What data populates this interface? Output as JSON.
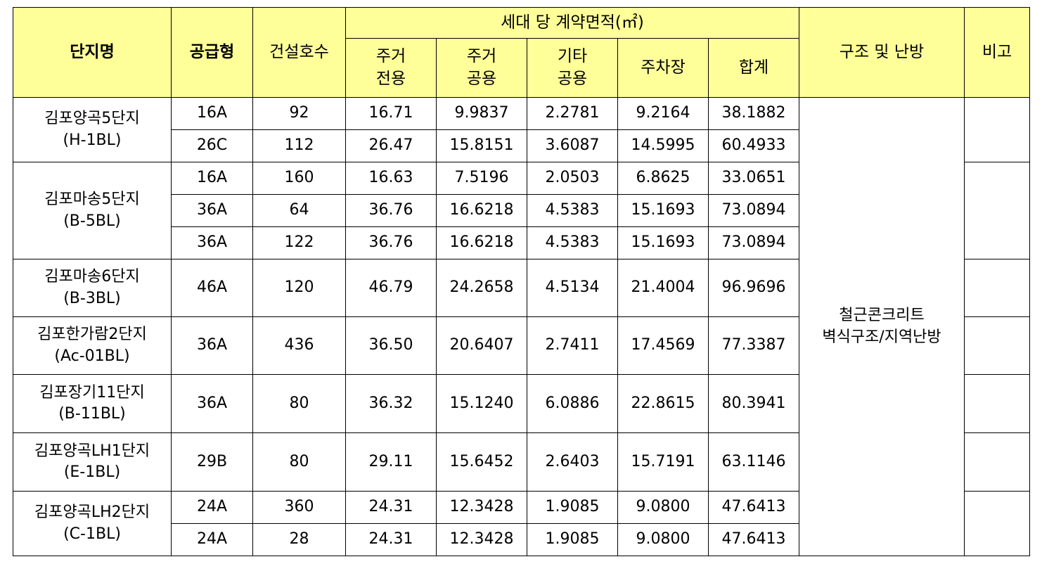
{
  "headers": {
    "complex_name": "단지명",
    "supply_type": "공급형",
    "construction_units": "건설호수",
    "area_group": "세대 당 계약면적(㎡)",
    "residential_exclusive": "주거\n전용",
    "residential_common": "주거\n공용",
    "other_common": "기타\n공용",
    "parking": "주차장",
    "total": "합계",
    "structure_heating": "구조 및 난방",
    "remarks": "비고"
  },
  "structure_heating_value": "철근콘크리트\n벽식구조/지역난방",
  "complexes": [
    {
      "name": "김포양곡5단지\n(H-1BL)",
      "rows": [
        {
          "type": "16A",
          "units": "92",
          "res_excl": "16.71",
          "res_common": "9.9837",
          "other_common": "2.2781",
          "parking": "9.2164",
          "total": "38.1882"
        },
        {
          "type": "26C",
          "units": "112",
          "res_excl": "26.47",
          "res_common": "15.8151",
          "other_common": "3.6087",
          "parking": "14.5995",
          "total": "60.4933"
        }
      ]
    },
    {
      "name": "김포마송5단지\n(B-5BL)",
      "rows": [
        {
          "type": "16A",
          "units": "160",
          "res_excl": "16.63",
          "res_common": "7.5196",
          "other_common": "2.0503",
          "parking": "6.8625",
          "total": "33.0651"
        },
        {
          "type": "36A",
          "units": "64",
          "res_excl": "36.76",
          "res_common": "16.6218",
          "other_common": "4.5383",
          "parking": "15.1693",
          "total": "73.0894"
        },
        {
          "type": "36A",
          "units": "122",
          "res_excl": "36.76",
          "res_common": "16.6218",
          "other_common": "4.5383",
          "parking": "15.1693",
          "total": "73.0894"
        }
      ]
    },
    {
      "name": "김포마송6단지\n(B-3BL)",
      "rows": [
        {
          "type": "46A",
          "units": "120",
          "res_excl": "46.79",
          "res_common": "24.2658",
          "other_common": "4.5134",
          "parking": "21.4004",
          "total": "96.9696"
        }
      ]
    },
    {
      "name": "김포한가람2단지\n(Ac-01BL)",
      "rows": [
        {
          "type": "36A",
          "units": "436",
          "res_excl": "36.50",
          "res_common": "20.6407",
          "other_common": "2.7411",
          "parking": "17.4569",
          "total": "77.3387"
        }
      ]
    },
    {
      "name": "김포장기11단지\n(B-11BL)",
      "rows": [
        {
          "type": "36A",
          "units": "80",
          "res_excl": "36.32",
          "res_common": "15.1240",
          "other_common": "6.0886",
          "parking": "22.8615",
          "total": "80.3941"
        }
      ]
    },
    {
      "name": "김포양곡LH1단지\n(E-1BL)",
      "rows": [
        {
          "type": "29B",
          "units": "80",
          "res_excl": "29.11",
          "res_common": "15.6452",
          "other_common": "2.6403",
          "parking": "15.7191",
          "total": "63.1146"
        }
      ]
    },
    {
      "name": "김포양곡LH2단지\n(C-1BL)",
      "rows": [
        {
          "type": "24A",
          "units": "360",
          "res_excl": "24.31",
          "res_common": "12.3428",
          "other_common": "1.9085",
          "parking": "9.0800",
          "total": "47.6413"
        },
        {
          "type": "24A",
          "units": "28",
          "res_excl": "24.31",
          "res_common": "12.3428",
          "other_common": "1.9085",
          "parking": "9.0800",
          "total": "47.6413"
        }
      ]
    }
  ]
}
